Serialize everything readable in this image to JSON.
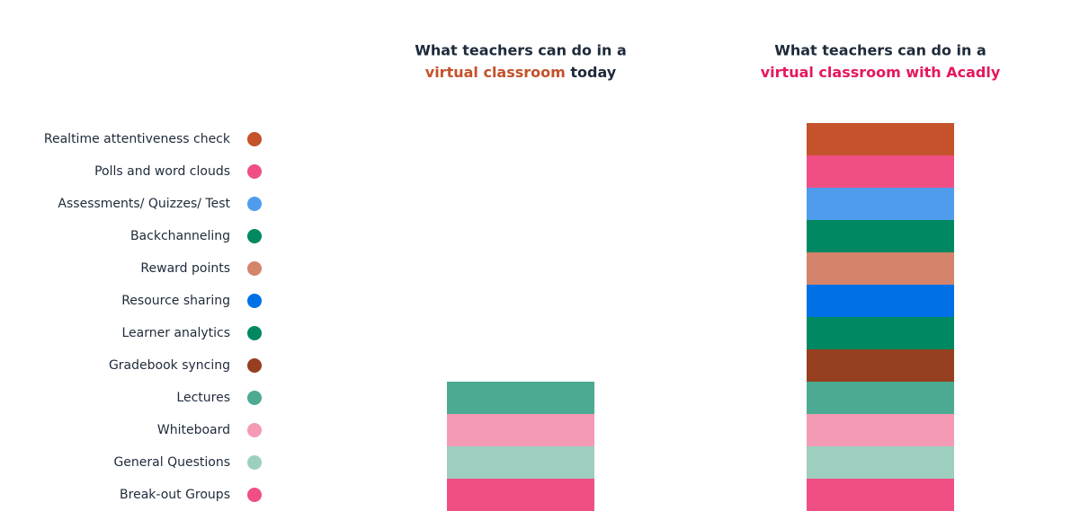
{
  "chart_data": {
    "type": "bar",
    "stacked": true,
    "titles": [
      {
        "text": "What teachers can do in a",
        "highlight": "virtual classroom",
        "after": "today",
        "highlight_color": "#c4522a"
      },
      {
        "text": "What teachers can do in a",
        "highlight": "virtual classroom with Acadly",
        "highlight_color": "#e5175f"
      }
    ],
    "series": [
      {
        "name": "Realtime attentiveness check",
        "color": "#c4522a",
        "values": [
          0,
          1
        ]
      },
      {
        "name": "Polls and word clouds",
        "color": "#f04f84",
        "values": [
          0,
          1
        ]
      },
      {
        "name": "Assessments/ Quizzes/ Test",
        "color": "#4f9ced",
        "values": [
          0,
          1
        ]
      },
      {
        "name": "Backchanneling",
        "color": "#008862",
        "values": [
          0,
          1
        ]
      },
      {
        "name": "Reward points",
        "color": "#d4846a",
        "values": [
          0,
          1
        ]
      },
      {
        "name": "Resource sharing",
        "color": "#0070e6",
        "values": [
          0,
          1
        ]
      },
      {
        "name": "Learner analytics",
        "color": "#008862",
        "values": [
          0,
          1
        ]
      },
      {
        "name": "Gradebook syncing",
        "color": "#963f20",
        "values": [
          0,
          1
        ]
      },
      {
        "name": "Lectures",
        "color": "#4caa92",
        "values": [
          1,
          1
        ]
      },
      {
        "name": "Whiteboard",
        "color": "#f59ab5",
        "values": [
          1,
          1
        ]
      },
      {
        "name": "General Questions",
        "color": "#9ccfc0",
        "values": [
          1,
          1
        ]
      },
      {
        "name": "Break-out Groups",
        "color": "#f04f84",
        "values": [
          1,
          1
        ]
      }
    ]
  }
}
